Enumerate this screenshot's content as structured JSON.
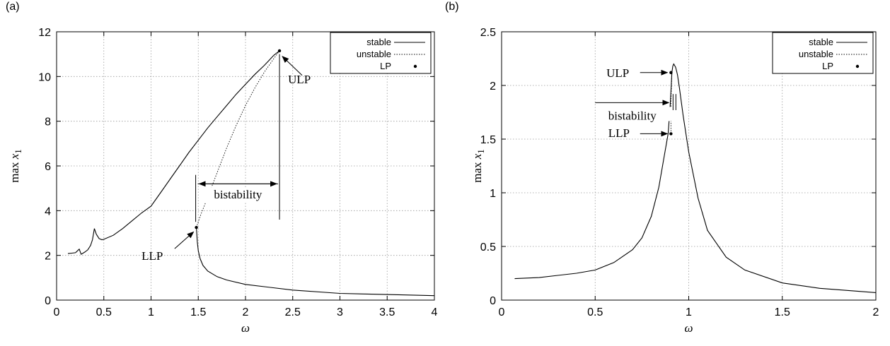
{
  "chart_data": [
    {
      "panel_label": "(a)",
      "type": "line",
      "xlabel": "ω",
      "ylabel_prefix": "max ",
      "ylabel_var": "x",
      "ylabel_sub": "1",
      "xlim": [
        0,
        4
      ],
      "ylim": [
        0,
        12
      ],
      "xticks": [
        "0",
        "0.5",
        "1",
        "1.5",
        "2",
        "2.5",
        "3",
        "3.5",
        "4"
      ],
      "yticks": [
        "0",
        "2",
        "4",
        "6",
        "8",
        "10",
        "12"
      ],
      "grid": true,
      "legend_position": "top-right",
      "legend": [
        "stable",
        "unstable",
        "LP"
      ],
      "series": [
        {
          "name": "stable",
          "style": "solid",
          "x": [
            0.12,
            0.16,
            0.2,
            0.22,
            0.24,
            0.26,
            0.28,
            0.3,
            0.33,
            0.36,
            0.38,
            0.4,
            0.42,
            0.45,
            0.48,
            0.5,
            0.6,
            0.7,
            0.8,
            0.9,
            1.0,
            1.1,
            1.2,
            1.3,
            1.4,
            1.5,
            1.6,
            1.7,
            1.8,
            1.9,
            2.0,
            2.1,
            2.2,
            2.3,
            2.36
          ],
          "y": [
            2.08,
            2.1,
            2.12,
            2.2,
            2.28,
            2.05,
            2.1,
            2.15,
            2.25,
            2.45,
            2.7,
            3.2,
            2.95,
            2.75,
            2.7,
            2.72,
            2.9,
            3.2,
            3.55,
            3.9,
            4.2,
            4.8,
            5.4,
            6.0,
            6.6,
            7.15,
            7.7,
            8.2,
            8.7,
            9.2,
            9.65,
            10.1,
            10.5,
            10.95,
            11.15
          ]
        },
        {
          "name": "unstable",
          "style": "dotted",
          "x": [
            1.48,
            1.52,
            1.6,
            1.7,
            1.8,
            1.9,
            2.0,
            2.1,
            2.2,
            2.3,
            2.36
          ],
          "y": [
            3.25,
            3.75,
            4.6,
            5.7,
            6.8,
            7.8,
            8.7,
            9.5,
            10.2,
            10.8,
            11.15
          ]
        },
        {
          "name": "stable",
          "style": "solid",
          "x": [
            1.48,
            1.49,
            1.5,
            1.52,
            1.55,
            1.6,
            1.7,
            1.8,
            2.0,
            2.5,
            3.0,
            3.5,
            4.0
          ],
          "y": [
            3.25,
            2.6,
            2.2,
            1.85,
            1.55,
            1.3,
            1.05,
            0.9,
            0.7,
            0.45,
            0.3,
            0.25,
            0.2
          ]
        }
      ],
      "limit_points": [
        {
          "name": "LLP",
          "x": 1.48,
          "y": 3.25
        },
        {
          "name": "ULP",
          "x": 2.36,
          "y": 11.15
        }
      ],
      "annotations": {
        "bistability": "bistability",
        "ulp": "ULP",
        "llp": "LLP"
      }
    },
    {
      "panel_label": "(b)",
      "type": "line",
      "xlabel": "ω",
      "ylabel_prefix": "max ",
      "ylabel_var": "x",
      "ylabel_sub": "1",
      "xlim": [
        0,
        2
      ],
      "ylim": [
        0,
        2.5
      ],
      "xticks": [
        "0",
        "0.5",
        "1",
        "1.5",
        "2"
      ],
      "yticks": [
        "0",
        "0.5",
        "1",
        "1.5",
        "2",
        "2.5"
      ],
      "grid": true,
      "legend_position": "top-right",
      "legend": [
        "stable",
        "unstable",
        "LP"
      ],
      "series": [
        {
          "name": "stable",
          "style": "solid",
          "x": [
            0.07,
            0.2,
            0.3,
            0.4,
            0.5,
            0.6,
            0.7,
            0.75,
            0.8,
            0.84,
            0.87,
            0.89,
            0.9,
            0.905,
            0.91
          ],
          "y": [
            0.2,
            0.21,
            0.23,
            0.25,
            0.28,
            0.35,
            0.47,
            0.58,
            0.78,
            1.05,
            1.35,
            1.55,
            1.78,
            1.95,
            2.12
          ]
        },
        {
          "name": "stable",
          "style": "solid",
          "x": [
            0.91,
            0.915,
            0.92,
            0.93,
            0.94,
            0.95,
            0.97,
            1.0,
            1.05,
            1.1,
            1.2,
            1.3,
            1.5,
            1.7,
            2.0
          ],
          "y": [
            2.12,
            2.18,
            2.2,
            2.17,
            2.1,
            1.98,
            1.72,
            1.38,
            0.95,
            0.65,
            0.4,
            0.28,
            0.16,
            0.11,
            0.07
          ]
        },
        {
          "name": "unstable",
          "style": "dotted",
          "x": [
            0.905,
            0.905,
            0.91
          ],
          "y": [
            1.55,
            1.85,
            2.12
          ]
        }
      ],
      "limit_points": [
        {
          "name": "LLP",
          "x": 0.905,
          "y": 1.55
        },
        {
          "name": "ULP",
          "x": 0.905,
          "y": 2.12
        }
      ],
      "annotations": {
        "bistability": "bistability",
        "ulp": "ULP",
        "llp": "LLP"
      }
    }
  ]
}
